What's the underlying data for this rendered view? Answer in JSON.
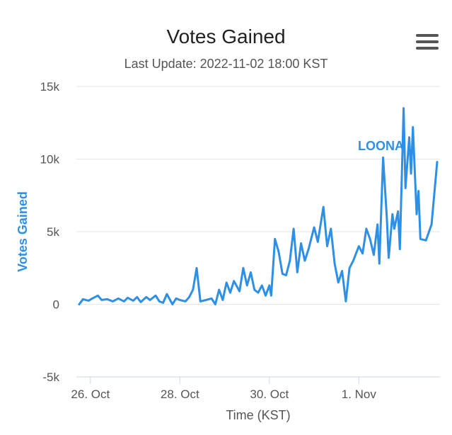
{
  "chart_data": {
    "type": "line",
    "title": "Votes Gained",
    "subtitle": "Last Update: 2022-11-02 18:00 KST",
    "xlabel": "Time (KST)",
    "ylabel": "Votes Gained",
    "ylim": [
      -5000,
      15000
    ],
    "y_ticks": [
      {
        "value": 15000,
        "label": "15k"
      },
      {
        "value": 10000,
        "label": "10k"
      },
      {
        "value": 5000,
        "label": "5k"
      },
      {
        "value": 0,
        "label": "0"
      },
      {
        "value": -5000,
        "label": "-5k"
      }
    ],
    "x_ticks": [
      {
        "date": "2022-10-26",
        "label": "26. Oct"
      },
      {
        "date": "2022-10-28",
        "label": "28. Oct"
      },
      {
        "date": "2022-10-30",
        "label": "30. Oct"
      },
      {
        "date": "2022-11-01",
        "label": "1. Nov"
      }
    ],
    "xlim": [
      "2022-10-25 18:00",
      "2022-11-02 18:00"
    ],
    "grid": true,
    "series": [
      {
        "name": "LOONA",
        "color": "#2d8fe6",
        "points": [
          [
            "2022-10-25 18:00",
            0
          ],
          [
            "2022-10-25 20:00",
            350
          ],
          [
            "2022-10-25 23:00",
            250
          ],
          [
            "2022-10-26 01:00",
            400
          ],
          [
            "2022-10-26 04:00",
            600
          ],
          [
            "2022-10-26 06:00",
            300
          ],
          [
            "2022-10-26 09:00",
            350
          ],
          [
            "2022-10-26 12:00",
            200
          ],
          [
            "2022-10-26 15:00",
            400
          ],
          [
            "2022-10-26 18:00",
            200
          ],
          [
            "2022-10-26 20:00",
            450
          ],
          [
            "2022-10-26 23:00",
            250
          ],
          [
            "2022-10-27 01:00",
            500
          ],
          [
            "2022-10-27 03:00",
            150
          ],
          [
            "2022-10-27 06:00",
            500
          ],
          [
            "2022-10-27 08:00",
            300
          ],
          [
            "2022-10-27 11:00",
            600
          ],
          [
            "2022-10-27 13:00",
            200
          ],
          [
            "2022-10-27 15:00",
            100
          ],
          [
            "2022-10-27 17:00",
            700
          ],
          [
            "2022-10-27 20:00",
            0
          ],
          [
            "2022-10-27 22:00",
            400
          ],
          [
            "2022-10-28 00:00",
            300
          ],
          [
            "2022-10-28 03:00",
            200
          ],
          [
            "2022-10-28 05:00",
            500
          ],
          [
            "2022-10-28 07:00",
            1000
          ],
          [
            "2022-10-28 09:00",
            2500
          ],
          [
            "2022-10-28 11:00",
            200
          ],
          [
            "2022-10-28 14:00",
            300
          ],
          [
            "2022-10-28 17:00",
            400
          ],
          [
            "2022-10-28 19:00",
            0
          ],
          [
            "2022-10-28 21:00",
            1000
          ],
          [
            "2022-10-28 23:00",
            300
          ],
          [
            "2022-10-29 01:00",
            1500
          ],
          [
            "2022-10-29 03:00",
            800
          ],
          [
            "2022-10-29 05:00",
            1600
          ],
          [
            "2022-10-29 08:00",
            900
          ],
          [
            "2022-10-29 10:00",
            2500
          ],
          [
            "2022-10-29 12:00",
            1300
          ],
          [
            "2022-10-29 14:00",
            2200
          ],
          [
            "2022-10-29 16:00",
            1000
          ],
          [
            "2022-10-29 18:00",
            800
          ],
          [
            "2022-10-29 20:00",
            1300
          ],
          [
            "2022-10-29 22:00",
            600
          ],
          [
            "2022-10-30 00:00",
            1300
          ],
          [
            "2022-10-30 01:00",
            600
          ],
          [
            "2022-10-30 03:00",
            4500
          ],
          [
            "2022-10-30 05:00",
            3600
          ],
          [
            "2022-10-30 07:00",
            2100
          ],
          [
            "2022-10-30 09:00",
            2000
          ],
          [
            "2022-10-30 11:00",
            3000
          ],
          [
            "2022-10-30 13:00",
            5200
          ],
          [
            "2022-10-30 15:00",
            2200
          ],
          [
            "2022-10-30 17:00",
            4200
          ],
          [
            "2022-10-30 19:00",
            3000
          ],
          [
            "2022-10-30 21:00",
            3800
          ],
          [
            "2022-10-31 00:00",
            5300
          ],
          [
            "2022-10-31 02:00",
            4300
          ],
          [
            "2022-10-31 05:00",
            6700
          ],
          [
            "2022-10-31 07:00",
            4000
          ],
          [
            "2022-10-31 09:00",
            5200
          ],
          [
            "2022-10-31 11:00",
            2800
          ],
          [
            "2022-10-31 13:00",
            1500
          ],
          [
            "2022-10-31 15:00",
            2300
          ],
          [
            "2022-10-31 17:00",
            200
          ],
          [
            "2022-10-31 19:00",
            2500
          ],
          [
            "2022-10-31 21:00",
            3000
          ],
          [
            "2022-11-01 00:00",
            4000
          ],
          [
            "2022-11-01 02:00",
            3500
          ],
          [
            "2022-11-01 04:00",
            5200
          ],
          [
            "2022-11-01 06:00",
            4500
          ],
          [
            "2022-11-01 08:00",
            3400
          ],
          [
            "2022-11-01 10:00",
            5500
          ],
          [
            "2022-11-01 11:00",
            2800
          ],
          [
            "2022-11-01 13:00",
            10100
          ],
          [
            "2022-11-01 15:00",
            6000
          ],
          [
            "2022-11-01 16:00",
            3200
          ],
          [
            "2022-11-01 18:00",
            6200
          ],
          [
            "2022-11-01 19:00",
            5200
          ],
          [
            "2022-11-01 21:00",
            6400
          ],
          [
            "2022-11-01 22:00",
            3800
          ],
          [
            "2022-11-02 00:00",
            13500
          ],
          [
            "2022-11-02 01:00",
            8000
          ],
          [
            "2022-11-02 03:00",
            11500
          ],
          [
            "2022-11-02 04:00",
            9000
          ],
          [
            "2022-11-02 05:00",
            12200
          ],
          [
            "2022-11-02 07:00",
            6200
          ],
          [
            "2022-11-02 08:00",
            7800
          ],
          [
            "2022-11-02 09:00",
            4500
          ],
          [
            "2022-11-02 12:00",
            4400
          ],
          [
            "2022-11-02 15:00",
            5500
          ],
          [
            "2022-11-02 18:00",
            9800
          ]
        ]
      }
    ],
    "series_label": "LOONA"
  },
  "menu_icon": "hamburger-menu-icon"
}
